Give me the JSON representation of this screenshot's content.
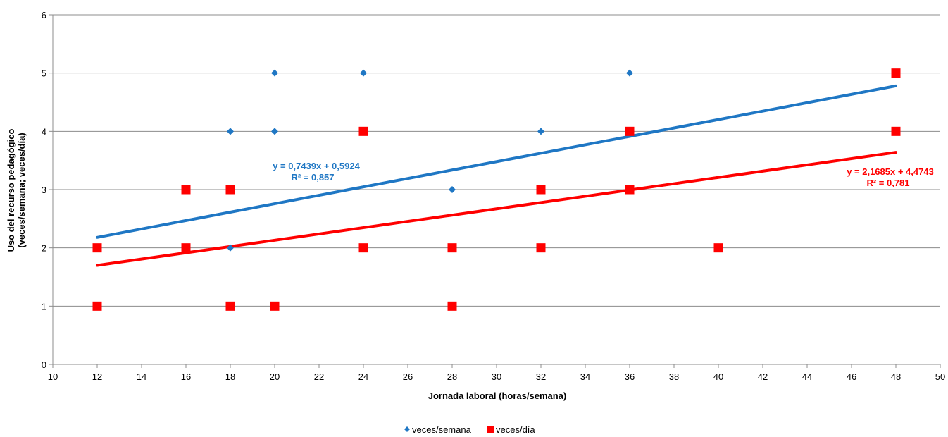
{
  "chart_data": {
    "type": "scatter",
    "xlabel": "Jornada laboral (horas/semana)",
    "ylabel_lines": [
      "Uso del recurso pedagógico",
      "(veces/semana;  veces/día)"
    ],
    "xlim": [
      10,
      50
    ],
    "ylim": [
      0,
      6
    ],
    "x_ticks": [
      10,
      12,
      14,
      16,
      18,
      20,
      22,
      24,
      26,
      28,
      30,
      32,
      34,
      36,
      38,
      40,
      42,
      44,
      46,
      48,
      50
    ],
    "y_ticks": [
      0,
      1,
      2,
      3,
      4,
      5,
      6
    ],
    "grid": "horizontal",
    "legend_position": "bottom",
    "series": [
      {
        "name": "veces/semana",
        "marker": "diamond",
        "color": "#1f77c4",
        "points": [
          [
            12,
            2
          ],
          [
            16,
            2
          ],
          [
            18,
            2
          ],
          [
            18,
            4
          ],
          [
            20,
            4
          ],
          [
            20,
            5
          ],
          [
            24,
            5
          ],
          [
            28,
            3
          ],
          [
            32,
            4
          ],
          [
            36,
            5
          ]
        ],
        "trendline": {
          "x_range": [
            12,
            48
          ],
          "y_range": [
            2.18,
            4.78
          ],
          "color": "#1f77c4",
          "equation": "y = 0,7439x  + 0,5924",
          "r2": "R² = 0,857"
        }
      },
      {
        "name": "veces/día",
        "marker": "square",
        "color": "#ff0000",
        "points": [
          [
            12,
            2
          ],
          [
            12,
            1
          ],
          [
            16,
            3
          ],
          [
            16,
            2
          ],
          [
            18,
            3
          ],
          [
            18,
            1
          ],
          [
            20,
            1
          ],
          [
            24,
            4
          ],
          [
            24,
            2
          ],
          [
            28,
            2
          ],
          [
            28,
            1
          ],
          [
            32,
            3
          ],
          [
            32,
            2
          ],
          [
            36,
            4
          ],
          [
            36,
            3
          ],
          [
            40,
            2
          ],
          [
            48,
            5
          ],
          [
            48,
            4
          ]
        ],
        "trendline": {
          "x_range": [
            12,
            48
          ],
          "y_range": [
            1.7,
            3.64
          ],
          "color": "#ff0000",
          "equation": "y = 2,1685x  + 4,4743",
          "r2": "R² = 0,781"
        }
      }
    ]
  }
}
